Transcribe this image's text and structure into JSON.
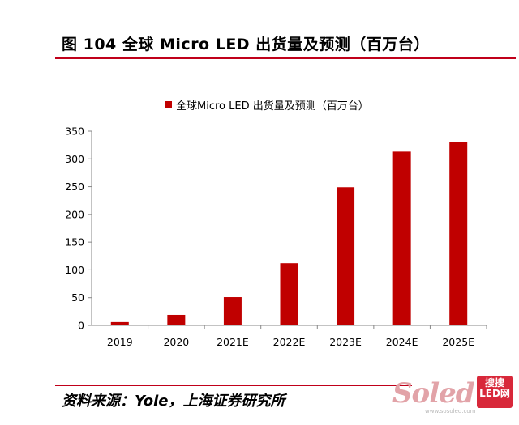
{
  "title": "图 104 全球 Micro LED 出货量及预测（百万台）",
  "source": "资料来源：Yole，上海证券研究所",
  "colors": {
    "accent_line": "#c0001a",
    "bar": "#c00000",
    "axis": "#878787"
  },
  "watermark": {
    "word": "Soled",
    "badge_line1": "搜搜",
    "badge_line2": "LED网",
    "url": "www.sosoled.com"
  },
  "chart_data": {
    "type": "bar",
    "title": "",
    "xlabel": "",
    "ylabel": "",
    "categories": [
      "2019",
      "2020",
      "2021E",
      "2022E",
      "2023E",
      "2024E",
      "2025E"
    ],
    "series": [
      {
        "name": "全球Micro LED 出货量及预测（百万台）",
        "values": [
          6,
          19,
          51,
          112,
          249,
          313,
          330
        ],
        "color": "#c00000"
      }
    ],
    "ylim": [
      0,
      350
    ],
    "yticks": [
      0,
      50,
      100,
      150,
      200,
      250,
      300,
      350
    ],
    "legend_position": "top",
    "grid": false
  }
}
